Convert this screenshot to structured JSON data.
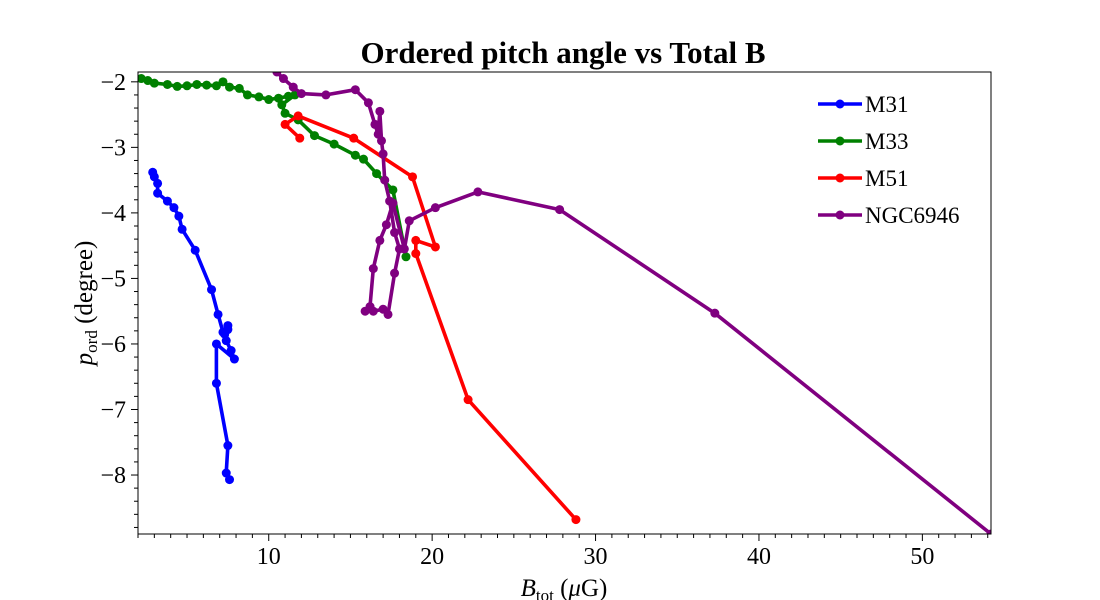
{
  "chart_data": {
    "type": "line",
    "title": "Ordered pitch angle vs Total B",
    "xlabel": {
      "main": "B",
      "sub": "tot",
      "rest": " (",
      "mu": "μ",
      "unit": "G)"
    },
    "ylabel": {
      "main": "p",
      "sub": "ord",
      "rest": " (degree)"
    },
    "xlim": [
      2.0,
      54.2
    ],
    "ylim": [
      -8.9,
      -1.85
    ],
    "xticks": [
      10,
      20,
      30,
      40,
      50
    ],
    "xtick_labels": [
      "10",
      "20",
      "30",
      "40",
      "50"
    ],
    "yticks": [
      -8,
      -7,
      -6,
      -5,
      -4,
      -3,
      -2
    ],
    "ytick_labels": [
      "−8",
      "−7",
      "−6",
      "−5",
      "−4",
      "−3",
      "−2"
    ],
    "legend_position": "top-right",
    "series": [
      {
        "name": "M31",
        "color": "#0000ff",
        "x": [
          2.9,
          3.0,
          3.2,
          3.2,
          3.8,
          4.2,
          4.5,
          4.7,
          5.5,
          6.5,
          6.9,
          7.2,
          7.3,
          7.5,
          7.5,
          7.4,
          7.7,
          7.9,
          6.8,
          6.8,
          7.5,
          7.4,
          7.6
        ],
        "y": [
          -3.38,
          -3.45,
          -3.55,
          -3.7,
          -3.82,
          -3.92,
          -4.05,
          -4.25,
          -4.57,
          -5.17,
          -5.55,
          -5.82,
          -5.85,
          -5.72,
          -5.78,
          -5.95,
          -6.1,
          -6.23,
          -6.0,
          -6.6,
          -7.55,
          -7.97,
          -8.07
        ]
      },
      {
        "name": "M33",
        "color": "#008000",
        "x": [
          2.2,
          2.6,
          3.0,
          3.8,
          4.4,
          5.0,
          5.6,
          6.2,
          6.8,
          7.2,
          7.6,
          8.2,
          8.7,
          9.4,
          10.0,
          10.6,
          11.2,
          11.6,
          10.8,
          11.0,
          11.8,
          12.8,
          14.0,
          15.3,
          15.8,
          16.6,
          17.6,
          18.4
        ],
        "y": [
          -1.95,
          -1.98,
          -2.02,
          -2.04,
          -2.07,
          -2.06,
          -2.04,
          -2.05,
          -2.06,
          -2.0,
          -2.08,
          -2.1,
          -2.2,
          -2.23,
          -2.27,
          -2.25,
          -2.22,
          -2.2,
          -2.35,
          -2.48,
          -2.58,
          -2.82,
          -2.95,
          -3.12,
          -3.18,
          -3.4,
          -3.65,
          -4.67
        ]
      },
      {
        "name": "M51",
        "color": "#ff0000",
        "x": [
          11.9,
          11.0,
          11.8,
          15.2,
          18.8,
          20.2,
          19.0,
          19.0,
          22.2,
          28.8
        ],
        "y": [
          -2.86,
          -2.65,
          -2.52,
          -2.86,
          -3.45,
          -4.52,
          -4.42,
          -4.62,
          -6.85,
          -8.68
        ]
      },
      {
        "name": "NGC6946",
        "color": "#800080",
        "x": [
          10.5,
          10.9,
          11.5,
          12.0,
          13.5,
          15.3,
          16.1,
          16.5,
          16.7,
          16.8,
          16.9,
          17.0,
          17.1,
          17.4,
          17.7,
          18.0,
          17.7,
          17.3,
          17.0,
          16.4,
          15.9,
          16.2,
          16.4,
          16.8,
          17.2,
          17.6,
          18.3,
          18.6,
          20.2,
          22.8,
          27.8,
          37.3,
          54.2
        ],
        "y": [
          -1.85,
          -1.95,
          -2.08,
          -2.18,
          -2.2,
          -2.12,
          -2.32,
          -2.65,
          -2.8,
          -2.45,
          -2.9,
          -3.1,
          -3.5,
          -3.82,
          -4.3,
          -4.55,
          -4.92,
          -5.55,
          -5.47,
          -5.5,
          -5.5,
          -5.43,
          -4.85,
          -4.42,
          -4.18,
          -3.85,
          -4.55,
          -4.12,
          -3.92,
          -3.68,
          -3.95,
          -5.53,
          -8.9
        ]
      }
    ]
  }
}
